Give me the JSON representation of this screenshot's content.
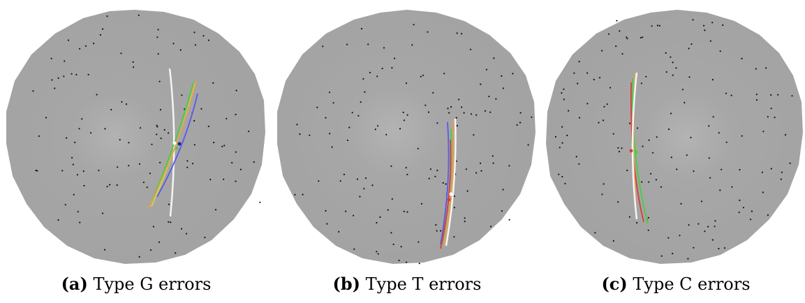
{
  "figure": {
    "panels": [
      {
        "label": "(a)",
        "caption": "Type G errors"
      },
      {
        "label": "(b)",
        "caption": "Type T errors"
      },
      {
        "label": "(c)",
        "caption": "Type C errors"
      }
    ]
  },
  "colors": {
    "sphere": "#a3a3a3",
    "highlight": "#b3b3b3",
    "points": "#111111",
    "curve_white": "#f4f4f4",
    "curve_orange": "#e8a04a",
    "curve_green": "#3fd33f",
    "curve_red": "#e03a3a",
    "curve_blue": "#5a5aea",
    "curve_yellow": "#d8d84a"
  }
}
